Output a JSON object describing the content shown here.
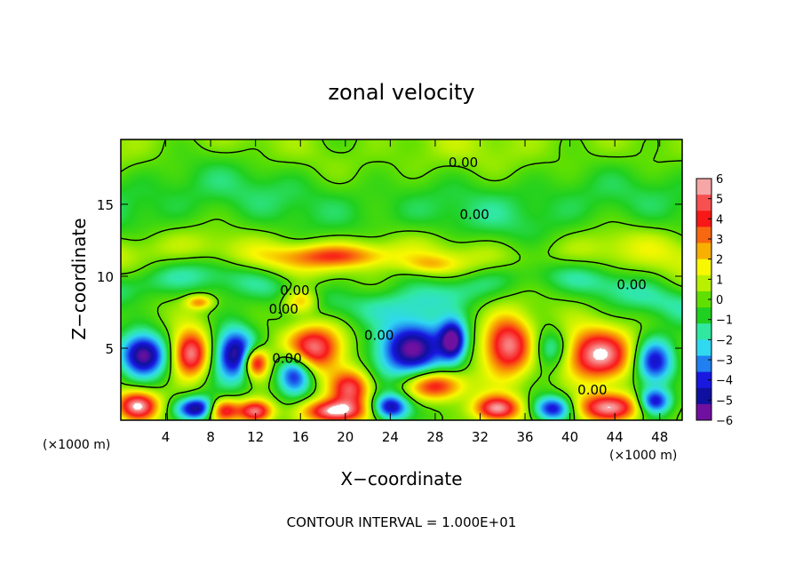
{
  "chart_data": {
    "type": "heatmap",
    "title": "zonal velocity",
    "xlabel": "X−coordinate",
    "ylabel": "Z−coordinate",
    "x_unit_left": "(×1000 m)",
    "x_unit_right": "(×1000 m)",
    "footer": "CONTOUR INTERVAL = 1.000E+01",
    "xlim": [
      0,
      50
    ],
    "ylim": [
      0,
      19.5
    ],
    "x_ticks": [
      4,
      8,
      12,
      16,
      20,
      24,
      28,
      32,
      36,
      40,
      44,
      48
    ],
    "y_ticks": [
      5,
      10,
      15
    ],
    "colorbar": {
      "range": [
        -6,
        6
      ],
      "ticks": [
        "6",
        "5",
        "4",
        "3",
        "2",
        "1",
        "0",
        "−1",
        "−2",
        "−3",
        "−4",
        "−5",
        "−6"
      ],
      "colors": [
        "#f6a6a6",
        "#f85050",
        "#f81818",
        "#f86810",
        "#f8b000",
        "#f8f800",
        "#b8f000",
        "#60e000",
        "#20d020",
        "#30e8a0",
        "#30d8f0",
        "#2080f0",
        "#1818e0",
        "#1010a0",
        "#7010a0"
      ]
    },
    "contour_labels": [
      "0.00",
      "0.00",
      "0.00",
      "0.00",
      "0.00",
      "0.00",
      "0.00",
      "0.00"
    ],
    "contour_label_positions": [
      {
        "x": 30.5,
        "z": 17.9
      },
      {
        "x": 31.5,
        "z": 14.3
      },
      {
        "x": 45.5,
        "z": 9.4
      },
      {
        "x": 15.5,
        "z": 9.0
      },
      {
        "x": 14.5,
        "z": 7.7
      },
      {
        "x": 23.0,
        "z": 5.9
      },
      {
        "x": 14.8,
        "z": 4.3
      },
      {
        "x": 42.0,
        "z": 2.1
      }
    ],
    "features": [
      {
        "type": "band",
        "z": 18.5,
        "value": 0.6,
        "amp": 1.0,
        "period": 28,
        "width": 2.5
      },
      {
        "type": "band",
        "z": 15.2,
        "value": -1.2,
        "amp": 1.0,
        "period": 40,
        "width": 2.8
      },
      {
        "type": "band",
        "z": 11.5,
        "value": 1.2,
        "amp": 0.5,
        "period": 20,
        "width": 1.5
      },
      {
        "type": "band",
        "z": 9.0,
        "value": -1.6,
        "amp": 1.2,
        "period": 30,
        "width": 1.3
      },
      {
        "type": "blob",
        "x": 19.0,
        "z": 11.4,
        "value": 3.0,
        "rx": 5.0,
        "rz": 0.8
      },
      {
        "type": "blob",
        "x": 27.5,
        "z": 10.8,
        "value": 2.0,
        "rx": 2.5,
        "rz": 0.7
      },
      {
        "type": "blob",
        "x": 16.0,
        "z": 8.3,
        "value": 3.5,
        "rx": 1.6,
        "rz": 0.9
      },
      {
        "type": "blob",
        "x": 7.0,
        "z": 8.2,
        "value": 3.0,
        "rx": 1.2,
        "rz": 0.5
      },
      {
        "type": "blob",
        "x": 2.0,
        "z": 4.5,
        "value": -6.0,
        "rx": 2.0,
        "rz": 1.5
      },
      {
        "type": "blob",
        "x": 6.2,
        "z": 4.6,
        "value": 6.0,
        "rx": 1.6,
        "rz": 1.6
      },
      {
        "type": "blob",
        "x": 10.2,
        "z": 4.6,
        "value": -6.0,
        "rx": 1.9,
        "rz": 1.8
      },
      {
        "type": "blob",
        "x": 12.0,
        "z": 4.0,
        "value": 6.0,
        "rx": 1.1,
        "rz": 1.0
      },
      {
        "type": "blob",
        "x": 15.5,
        "z": 3.3,
        "value": -5.0,
        "rx": 1.6,
        "rz": 1.5
      },
      {
        "type": "blob",
        "x": 17.2,
        "z": 5.0,
        "value": 6.0,
        "rx": 2.6,
        "rz": 1.6
      },
      {
        "type": "blob",
        "x": 20.5,
        "z": 2.2,
        "value": 5.0,
        "rx": 1.8,
        "rz": 1.3
      },
      {
        "type": "blob",
        "x": 26.0,
        "z": 5.0,
        "value": -6.0,
        "rx": 3.2,
        "rz": 2.0
      },
      {
        "type": "blob",
        "x": 28.0,
        "z": 2.4,
        "value": 5.0,
        "rx": 2.5,
        "rz": 1.0
      },
      {
        "type": "blob",
        "x": 29.6,
        "z": 5.5,
        "value": -5.5,
        "rx": 1.2,
        "rz": 1.4
      },
      {
        "type": "blob",
        "x": 34.5,
        "z": 5.2,
        "value": 6.0,
        "rx": 2.2,
        "rz": 2.0
      },
      {
        "type": "blob",
        "x": 38.3,
        "z": 5.0,
        "value": -2.5,
        "rx": 1.6,
        "rz": 1.3
      },
      {
        "type": "blob",
        "x": 42.5,
        "z": 4.5,
        "value": 6.0,
        "rx": 3.0,
        "rz": 1.8
      },
      {
        "type": "blob",
        "x": 47.5,
        "z": 4.0,
        "value": -5.0,
        "rx": 1.8,
        "rz": 1.6
      },
      {
        "type": "blob",
        "x": 1.5,
        "z": 1.0,
        "value": 6.0,
        "rx": 1.8,
        "rz": 1.0
      },
      {
        "type": "blob",
        "x": 7.0,
        "z": 0.8,
        "value": -6.0,
        "rx": 2.0,
        "rz": 0.8
      },
      {
        "type": "blob",
        "x": 9.0,
        "z": 0.7,
        "value": 6.0,
        "rx": 1.5,
        "rz": 0.8
      },
      {
        "type": "blob",
        "x": 12.0,
        "z": 0.6,
        "value": 6.0,
        "rx": 1.5,
        "rz": 0.8
      },
      {
        "type": "blob",
        "x": 19.0,
        "z": 0.6,
        "value": 6.0,
        "rx": 2.6,
        "rz": 0.8
      },
      {
        "type": "blob",
        "x": 24.0,
        "z": 0.9,
        "value": -5.0,
        "rx": 1.6,
        "rz": 0.9
      },
      {
        "type": "blob",
        "x": 33.5,
        "z": 0.8,
        "value": 6.0,
        "rx": 2.0,
        "rz": 0.9
      },
      {
        "type": "blob",
        "x": 38.5,
        "z": 0.8,
        "value": -5.0,
        "rx": 1.8,
        "rz": 0.9
      },
      {
        "type": "blob",
        "x": 43.5,
        "z": 0.9,
        "value": 6.0,
        "rx": 3.0,
        "rz": 1.0
      },
      {
        "type": "blob",
        "x": 47.5,
        "z": 1.3,
        "value": -5.0,
        "rx": 1.5,
        "rz": 0.9
      }
    ]
  }
}
